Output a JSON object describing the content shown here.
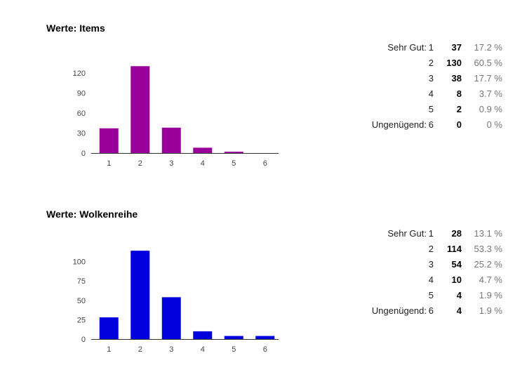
{
  "chart_data": [
    {
      "type": "bar",
      "title": "Werte: Items",
      "categories": [
        "1",
        "2",
        "3",
        "4",
        "5",
        "6"
      ],
      "values": [
        37,
        130,
        38,
        8,
        2,
        0
      ],
      "ylim": [
        0,
        145
      ],
      "yticks": [
        0,
        30,
        60,
        90,
        120
      ],
      "color": "#990099",
      "stats": [
        {
          "label": "Sehr Gut:",
          "grade": "1",
          "count": "37",
          "pct": "17.2 %"
        },
        {
          "label": "",
          "grade": "2",
          "count": "130",
          "pct": "60.5 %"
        },
        {
          "label": "",
          "grade": "3",
          "count": "38",
          "pct": "17.7 %"
        },
        {
          "label": "",
          "grade": "4",
          "count": "8",
          "pct": "3.7 %"
        },
        {
          "label": "",
          "grade": "5",
          "count": "2",
          "pct": "0.9 %"
        },
        {
          "label": "Ungenügend:",
          "grade": "6",
          "count": "0",
          "pct": "0 %"
        }
      ]
    },
    {
      "type": "bar",
      "title": "Werte: Wolkenreihe",
      "categories": [
        "1",
        "2",
        "3",
        "4",
        "5",
        "6"
      ],
      "values": [
        28,
        114,
        54,
        10,
        4,
        4
      ],
      "ylim": [
        0,
        125
      ],
      "yticks": [
        0,
        25,
        50,
        75,
        100
      ],
      "color": "#0000dd",
      "stats": [
        {
          "label": "Sehr Gut:",
          "grade": "1",
          "count": "28",
          "pct": "13.1 %"
        },
        {
          "label": "",
          "grade": "2",
          "count": "114",
          "pct": "53.3 %"
        },
        {
          "label": "",
          "grade": "3",
          "count": "54",
          "pct": "25.2 %"
        },
        {
          "label": "",
          "grade": "4",
          "count": "10",
          "pct": "4.7 %"
        },
        {
          "label": "",
          "grade": "5",
          "count": "4",
          "pct": "1.9 %"
        },
        {
          "label": "Ungenügend:",
          "grade": "6",
          "count": "4",
          "pct": "1.9 %"
        }
      ]
    }
  ]
}
